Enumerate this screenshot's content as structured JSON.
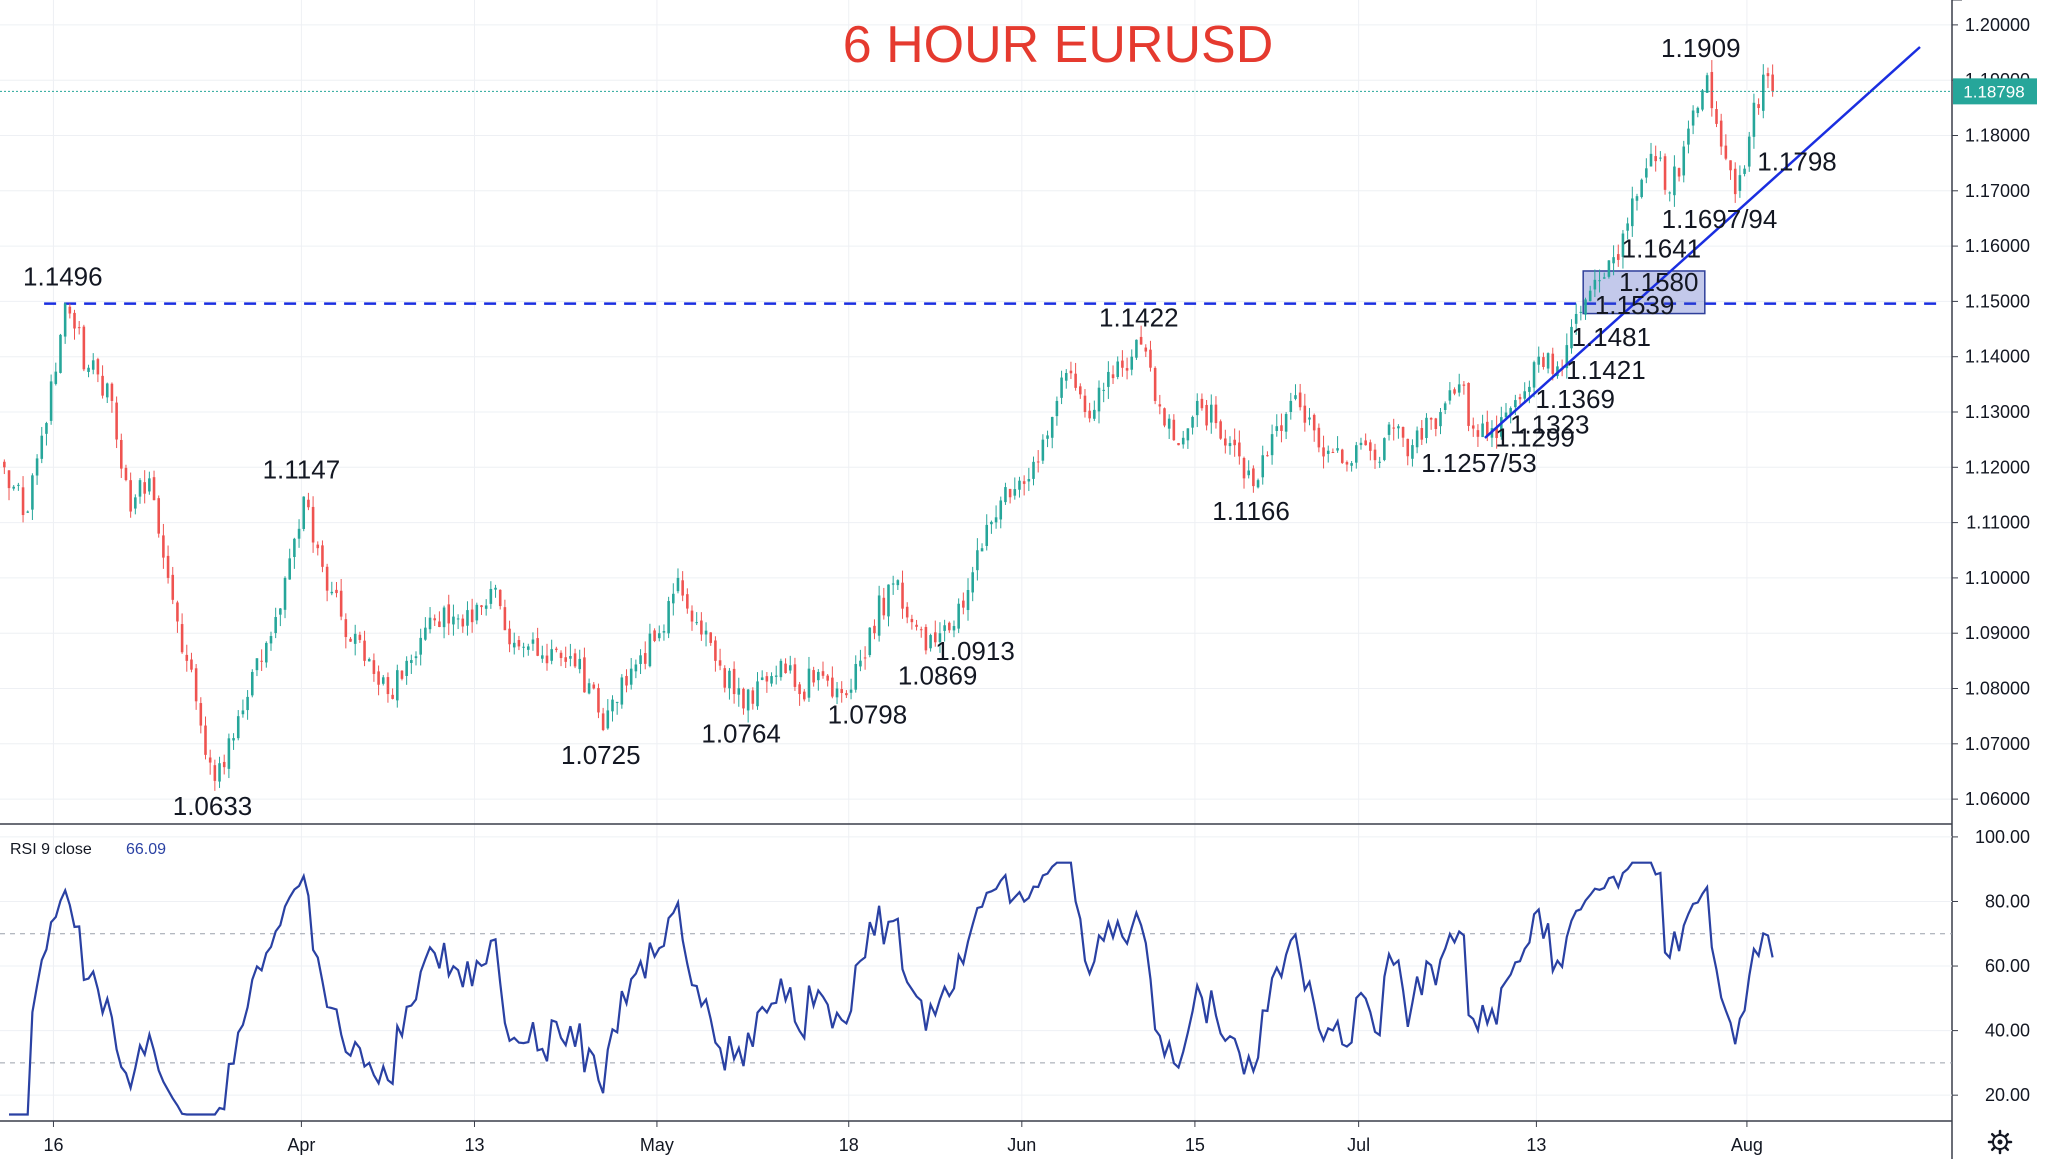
{
  "chart_data": {
    "type": "candlestick",
    "title": "6 HOUR EURUSD",
    "price_axis": {
      "ticks": [
        "1.20000",
        "1.19000",
        "1.18000",
        "1.17000",
        "1.16000",
        "1.15000",
        "1.14000",
        "1.13000",
        "1.12000",
        "1.11000",
        "1.10000",
        "1.09000",
        "1.08000",
        "1.07000",
        "1.06000"
      ],
      "range": [
        1.0555,
        1.2045
      ]
    },
    "last_price": "1.18798",
    "time_axis": {
      "labels": [
        "16",
        "Apr",
        "13",
        "May",
        "18",
        "Jun",
        "15",
        "Jul",
        "13",
        "Aug"
      ],
      "label_index": [
        11,
        64,
        101,
        140,
        181,
        218,
        255,
        290,
        328,
        373
      ],
      "bars": 410
    },
    "price_path": [
      [
        0,
        1.12
      ],
      [
        5,
        1.112
      ],
      [
        9,
        1.128
      ],
      [
        13,
        1.1496
      ],
      [
        18,
        1.138
      ],
      [
        23,
        1.132
      ],
      [
        27,
        1.112
      ],
      [
        31,
        1.118
      ],
      [
        35,
        1.1
      ],
      [
        39,
        1.085
      ],
      [
        43,
        1.068
      ],
      [
        45,
        1.0633
      ],
      [
        50,
        1.075
      ],
      [
        55,
        1.085
      ],
      [
        60,
        1.1
      ],
      [
        64,
        1.1147
      ],
      [
        68,
        1.102
      ],
      [
        72,
        1.093
      ],
      [
        77,
        1.085
      ],
      [
        82,
        1.079
      ],
      [
        86,
        1.085
      ],
      [
        90,
        1.091
      ],
      [
        96,
        1.093
      ],
      [
        100,
        1.092
      ],
      [
        104,
        1.098
      ],
      [
        108,
        1.088
      ],
      [
        115,
        1.086
      ],
      [
        122,
        1.084
      ],
      [
        126,
        1.08
      ],
      [
        128,
        1.0725
      ],
      [
        132,
        1.082
      ],
      [
        136,
        1.086
      ],
      [
        140,
        1.09
      ],
      [
        144,
        1.1
      ],
      [
        148,
        1.092
      ],
      [
        152,
        1.085
      ],
      [
        156,
        1.079
      ],
      [
        158,
        1.0764
      ],
      [
        162,
        1.082
      ],
      [
        166,
        1.085
      ],
      [
        170,
        1.079
      ],
      [
        174,
        1.083
      ],
      [
        178,
        1.08
      ],
      [
        181,
        1.0798
      ],
      [
        185,
        1.091
      ],
      [
        190,
        1.099
      ],
      [
        194,
        1.092
      ],
      [
        197,
        1.0869
      ],
      [
        200,
        1.09
      ],
      [
        203,
        1.0913
      ],
      [
        208,
        1.105
      ],
      [
        213,
        1.114
      ],
      [
        218,
        1.117
      ],
      [
        222,
        1.125
      ],
      [
        225,
        1.132
      ],
      [
        228,
        1.137
      ],
      [
        231,
        1.13
      ],
      [
        235,
        1.134
      ],
      [
        239,
        1.138
      ],
      [
        243,
        1.1422
      ],
      [
        247,
        1.131
      ],
      [
        251,
        1.124
      ],
      [
        255,
        1.132
      ],
      [
        259,
        1.128
      ],
      [
        263,
        1.124
      ],
      [
        267,
        1.1166
      ],
      [
        271,
        1.126
      ],
      [
        275,
        1.132
      ],
      [
        279,
        1.129
      ],
      [
        283,
        1.123
      ],
      [
        287,
        1.1205
      ],
      [
        291,
        1.124
      ],
      [
        294,
        1.121
      ],
      [
        297,
        1.127
      ],
      [
        300,
        1.122
      ],
      [
        303,
        1.125
      ],
      [
        307,
        1.13
      ],
      [
        311,
        1.135
      ],
      [
        314,
        1.127
      ],
      [
        317,
        1.1257
      ],
      [
        319,
        1.1253
      ],
      [
        321,
        1.1299
      ],
      [
        324,
        1.1323
      ],
      [
        328,
        1.14
      ],
      [
        331,
        1.1369
      ],
      [
        334,
        1.1421
      ],
      [
        337,
        1.1481
      ],
      [
        340,
        1.1539
      ],
      [
        344,
        1.158
      ],
      [
        347,
        1.1641
      ],
      [
        350,
        1.172
      ],
      [
        354,
        1.176
      ],
      [
        356,
        1.1697
      ],
      [
        359,
        1.178
      ],
      [
        362,
        1.185
      ],
      [
        364,
        1.1909
      ],
      [
        367,
        1.178
      ],
      [
        370,
        1.1694
      ],
      [
        373,
        1.1798
      ],
      [
        376,
        1.191
      ],
      [
        378,
        1.18798
      ]
    ],
    "candle_colors": {
      "up": "#26a69a",
      "down": "#ef5350"
    },
    "annotations": [
      {
        "text": "1.1496",
        "i": 13,
        "price": 1.1496,
        "pos": "above"
      },
      {
        "text": "1.0633",
        "i": 45,
        "price": 1.0633,
        "pos": "below"
      },
      {
        "text": "1.1147",
        "i": 64,
        "price": 1.1147,
        "pos": "above"
      },
      {
        "text": "1.0725",
        "i": 128,
        "price": 1.0725,
        "pos": "below"
      },
      {
        "text": "1.0764",
        "i": 158,
        "price": 1.0764,
        "pos": "below"
      },
      {
        "text": "1.0798",
        "i": 185,
        "price": 1.0798,
        "pos": "below"
      },
      {
        "text": "1.0869",
        "i": 200,
        "price": 1.0869,
        "pos": "below"
      },
      {
        "text": "1.0913",
        "i": 208,
        "price": 1.0913,
        "pos": "below"
      },
      {
        "text": "1.1422",
        "i": 243,
        "price": 1.1422,
        "pos": "above"
      },
      {
        "text": "1.1166",
        "i": 267,
        "price": 1.1166,
        "pos": "below"
      },
      {
        "text": "1.1257/53",
        "i": 317,
        "price": 1.1253,
        "pos": "below"
      },
      {
        "text": "1.1299",
        "i": 326,
        "price": 1.1299,
        "pos": "below"
      },
      {
        "text": "1.1323",
        "i": 330,
        "price": 1.1323,
        "pos": "below"
      },
      {
        "text": "1.1369",
        "i": 338,
        "price": 1.1369,
        "pos": "below"
      },
      {
        "text": "1.1421",
        "i": 342,
        "price": 1.1421,
        "pos": "below"
      },
      {
        "text": "1.1481",
        "i": 344,
        "price": 1.1481,
        "pos": "below"
      },
      {
        "text": "1.1539",
        "i": 346,
        "price": 1.1539,
        "pos": "below"
      },
      {
        "text": "1.1580",
        "i": 355,
        "price": 1.158,
        "pos": "below"
      },
      {
        "text": "1.1641",
        "i": 356,
        "price": 1.1641,
        "pos": "below"
      },
      {
        "text": "1.1697/94",
        "i": 368,
        "price": 1.1694,
        "pos": "below"
      },
      {
        "text": "1.1798",
        "i": 382,
        "price": 1.1798,
        "pos": "below"
      },
      {
        "text": "1.1909",
        "i": 364,
        "price": 1.1909,
        "pos": "above"
      }
    ],
    "resistance_level": 1.1496,
    "trendline": {
      "from": [
        317,
        1.1253
      ],
      "to": [
        410,
        1.196
      ]
    },
    "zone": {
      "from_i": 338,
      "to_i": 364,
      "price_low": 1.1478,
      "price_high": 1.1555
    },
    "rsi": {
      "label": "RSI 9 close",
      "value": "66.09",
      "ticks": [
        "100.00",
        "80.00",
        "60.00",
        "40.00",
        "20.00"
      ],
      "range": [
        12,
        104
      ],
      "levels": [
        70,
        30
      ]
    }
  }
}
